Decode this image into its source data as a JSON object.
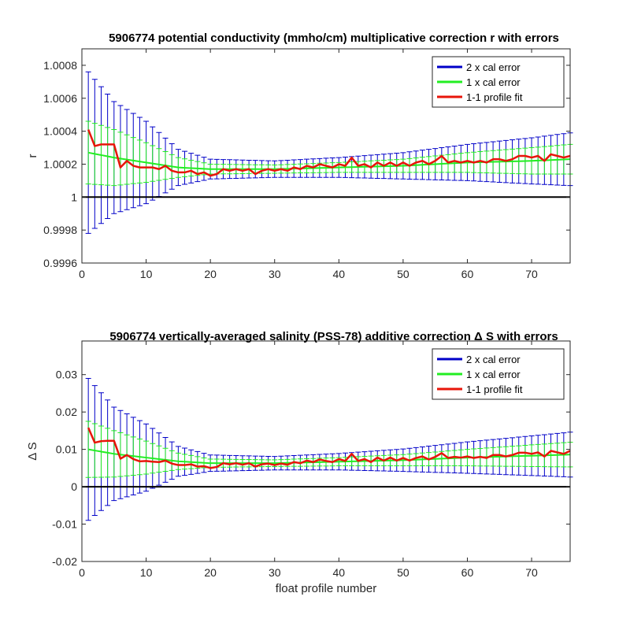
{
  "figure": {
    "xlabel": "float profile number"
  },
  "chart_data": [
    {
      "type": "line",
      "title": "5906774 potential conductivity (mmho/cm) multiplicative correction r with errors",
      "ylabel": "r",
      "xlim": [
        0,
        76
      ],
      "ylim": [
        0.9996,
        1.0009
      ],
      "xticks": [
        0,
        10,
        20,
        30,
        40,
        50,
        60,
        70
      ],
      "yticks": [
        0.9996,
        0.9998,
        1,
        1.0002,
        1.0004,
        1.0006,
        1.0008
      ],
      "ytick_labels": [
        "0.9996",
        "0.9998",
        "1",
        "1.0002",
        "1.0004",
        "1.0006",
        "1.0008"
      ],
      "legend_position": "top-right",
      "reference_line": 1,
      "legend": [
        "2 x cal error",
        "1 x cal error",
        "1-1 profile fit"
      ],
      "colors": {
        "two_x": "#0000c8",
        "one_x": "#22ee22",
        "fit": "#e8150a",
        "ref": "#000000"
      },
      "series": [
        {
          "name": "1-1 profile fit",
          "x": [
            1,
            2,
            3,
            4,
            5,
            6,
            7,
            8,
            9,
            10,
            11,
            12,
            13,
            14,
            15,
            16,
            17,
            18,
            19,
            20,
            21,
            22,
            23,
            24,
            25,
            26,
            27,
            28,
            29,
            30,
            31,
            32,
            33,
            34,
            35,
            36,
            37,
            38,
            39,
            40,
            41,
            42,
            43,
            44,
            45,
            46,
            47,
            48,
            49,
            50,
            51,
            52,
            53,
            54,
            55,
            56,
            57,
            58,
            59,
            60,
            61,
            62,
            63,
            64,
            65,
            66,
            67,
            68,
            69,
            70,
            71,
            72,
            73,
            74,
            75,
            76
          ],
          "y": [
            1.00041,
            1.00031,
            1.00032,
            1.00032,
            1.00032,
            1.00018,
            1.00022,
            1.00019,
            1.00018,
            1.00018,
            1.00018,
            1.00017,
            1.00019,
            1.00016,
            1.00015,
            1.00015,
            1.00016,
            1.00014,
            1.00015,
            1.00013,
            1.00014,
            1.00017,
            1.00016,
            1.00017,
            1.00016,
            1.00017,
            1.00014,
            1.00016,
            1.00017,
            1.00016,
            1.00017,
            1.00016,
            1.00018,
            1.00017,
            1.00019,
            1.00018,
            1.0002,
            1.00019,
            1.00018,
            1.0002,
            1.00019,
            1.00024,
            1.00019,
            1.0002,
            1.00018,
            1.00021,
            1.00019,
            1.00021,
            1.00019,
            1.00021,
            1.00019,
            1.00021,
            1.00022,
            1.0002,
            1.00022,
            1.00025,
            1.00021,
            1.00022,
            1.00021,
            1.00022,
            1.00021,
            1.00022,
            1.00021,
            1.00023,
            1.00023,
            1.00022,
            1.00023,
            1.00025,
            1.00025,
            1.00024,
            1.00025,
            1.00022,
            1.00026,
            1.00025,
            1.00024,
            1.00025
          ]
        },
        {
          "name": "1 x cal error",
          "center": {
            "x": [
              1,
              5,
              10,
              15,
              20,
              30,
              40,
              50,
              60,
              70,
              76
            ],
            "y": [
              1.00027,
              1.00024,
              1.00021,
              1.00018,
              1.00017,
              1.00017,
              1.00018,
              1.00019,
              1.00021,
              1.00022,
              1.00023
            ]
          },
          "halfwidth": {
            "x": [
              1,
              5,
              10,
              15,
              20,
              30,
              40,
              50,
              60,
              70,
              76
            ],
            "y": [
              0.00019,
              0.00017,
              0.00012,
              6e-05,
              3e-05,
              2.5e-05,
              3e-05,
              4e-05,
              6e-05,
              8e-05,
              9e-05
            ]
          }
        },
        {
          "name": "2 x cal error",
          "halfwidth": {
            "x": [
              1,
              5,
              10,
              15,
              20,
              30,
              40,
              50,
              60,
              70,
              76
            ],
            "y": [
              0.00049,
              0.00034,
              0.00025,
              0.00011,
              6e-05,
              5e-05,
              6e-05,
              8e-05,
              0.00011,
              0.00014,
              0.00016
            ]
          }
        }
      ]
    },
    {
      "type": "line",
      "title": "5906774 vertically-averaged salinity (PSS-78) additive correction Δ S with errors",
      "ylabel": "Δ S",
      "xlabel": "float profile number",
      "xlim": [
        0,
        76
      ],
      "ylim": [
        -0.02,
        0.039
      ],
      "xticks": [
        0,
        10,
        20,
        30,
        40,
        50,
        60,
        70
      ],
      "yticks": [
        -0.02,
        -0.01,
        0,
        0.01,
        0.02,
        0.03
      ],
      "ytick_labels": [
        "-0.02",
        "-0.01",
        "0",
        "0.01",
        "0.02",
        "0.03"
      ],
      "legend_position": "top-right",
      "reference_line": 0,
      "legend": [
        "2 x cal error",
        "1 x cal error",
        "1-1 profile fit"
      ],
      "colors": {
        "two_x": "#0000c8",
        "one_x": "#22ee22",
        "fit": "#e8150a",
        "ref": "#000000"
      },
      "series": [
        {
          "name": "1-1 profile fit",
          "x": [
            1,
            2,
            3,
            4,
            5,
            6,
            7,
            8,
            9,
            10,
            11,
            12,
            13,
            14,
            15,
            16,
            17,
            18,
            19,
            20,
            21,
            22,
            23,
            24,
            25,
            26,
            27,
            28,
            29,
            30,
            31,
            32,
            33,
            34,
            35,
            36,
            37,
            38,
            39,
            40,
            41,
            42,
            43,
            44,
            45,
            46,
            47,
            48,
            49,
            50,
            51,
            52,
            53,
            54,
            55,
            56,
            57,
            58,
            59,
            60,
            61,
            62,
            63,
            64,
            65,
            66,
            67,
            68,
            69,
            70,
            71,
            72,
            73,
            74,
            75,
            76
          ],
          "y": [
            0.0158,
            0.0118,
            0.0122,
            0.0123,
            0.0123,
            0.0075,
            0.0085,
            0.0074,
            0.0068,
            0.0069,
            0.0067,
            0.0066,
            0.007,
            0.0062,
            0.0058,
            0.0058,
            0.006,
            0.0054,
            0.0055,
            0.005,
            0.0053,
            0.0063,
            0.006,
            0.0063,
            0.0059,
            0.0063,
            0.0054,
            0.006,
            0.0062,
            0.0058,
            0.0062,
            0.0059,
            0.0066,
            0.0063,
            0.007,
            0.0066,
            0.0073,
            0.0069,
            0.0066,
            0.0074,
            0.0069,
            0.0088,
            0.0069,
            0.0074,
            0.0066,
            0.0078,
            0.007,
            0.0078,
            0.007,
            0.0077,
            0.007,
            0.0077,
            0.0081,
            0.0073,
            0.008,
            0.009,
            0.0077,
            0.008,
            0.0078,
            0.0081,
            0.0077,
            0.008,
            0.0077,
            0.0085,
            0.0085,
            0.0081,
            0.0085,
            0.0091,
            0.0091,
            0.0088,
            0.0092,
            0.0081,
            0.0096,
            0.0092,
            0.0088,
            0.0096
          ]
        },
        {
          "name": "1 x cal error",
          "center": {
            "x": [
              1,
              5,
              10,
              15,
              20,
              30,
              40,
              50,
              60,
              70,
              76
            ],
            "y": [
              0.01,
              0.0088,
              0.0078,
              0.0068,
              0.0063,
              0.0063,
              0.0067,
              0.0071,
              0.0078,
              0.0083,
              0.0086
            ]
          },
          "halfwidth": {
            "x": [
              1,
              5,
              10,
              15,
              20,
              30,
              40,
              50,
              60,
              70,
              76
            ],
            "y": [
              0.0075,
              0.0062,
              0.0044,
              0.0022,
              0.0011,
              0.0009,
              0.0011,
              0.0015,
              0.0022,
              0.0029,
              0.0033
            ]
          }
        },
        {
          "name": "2 x cal error",
          "halfwidth": {
            "x": [
              1,
              5,
              10,
              15,
              20,
              30,
              40,
              50,
              60,
              70,
              76
            ],
            "y": [
              0.019,
              0.0125,
              0.009,
              0.004,
              0.0022,
              0.0018,
              0.0022,
              0.003,
              0.0042,
              0.0053,
              0.006
            ]
          }
        }
      ]
    }
  ]
}
